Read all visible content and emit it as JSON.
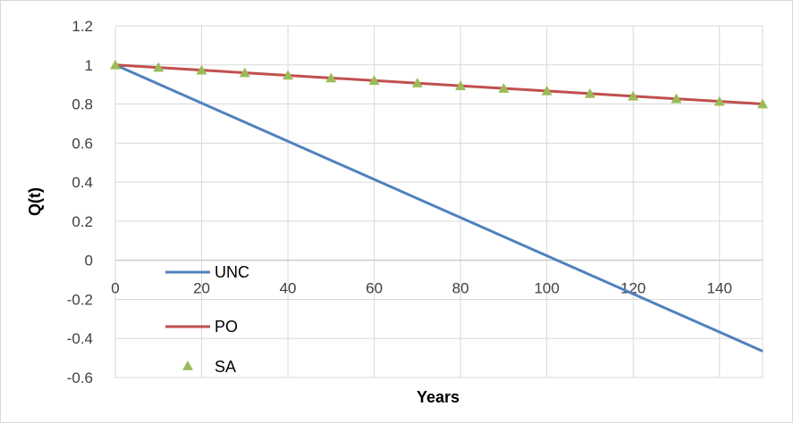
{
  "chart_data": {
    "type": "line",
    "title": "",
    "xlabel": "Years",
    "ylabel": "Q(t)",
    "xlim": [
      0,
      150
    ],
    "ylim": [
      -0.6,
      1.2
    ],
    "xticks": [
      0,
      20,
      40,
      60,
      80,
      100,
      120,
      140
    ],
    "yticks": [
      -0.6,
      -0.4,
      -0.2,
      0,
      0.2,
      0.4,
      0.6,
      0.8,
      1,
      1.2
    ],
    "grid": true,
    "legend_position": "bottom-left",
    "series": [
      {
        "name": "UNC",
        "kind": "line",
        "color": "#4f81bd",
        "x": [
          0,
          150
        ],
        "y": [
          1.0,
          -0.465
        ]
      },
      {
        "name": "PO",
        "kind": "line",
        "color": "#c0504d",
        "x": [
          0,
          150
        ],
        "y": [
          1.0,
          0.8
        ]
      },
      {
        "name": "SA",
        "kind": "marker",
        "marker": "triangle",
        "color": "#9bbb59",
        "x": [
          0,
          10,
          20,
          30,
          40,
          50,
          60,
          70,
          80,
          90,
          100,
          110,
          120,
          130,
          140,
          150
        ],
        "y": [
          1.0,
          0.987,
          0.973,
          0.96,
          0.947,
          0.933,
          0.92,
          0.907,
          0.893,
          0.88,
          0.867,
          0.853,
          0.84,
          0.827,
          0.813,
          0.8
        ]
      }
    ]
  }
}
